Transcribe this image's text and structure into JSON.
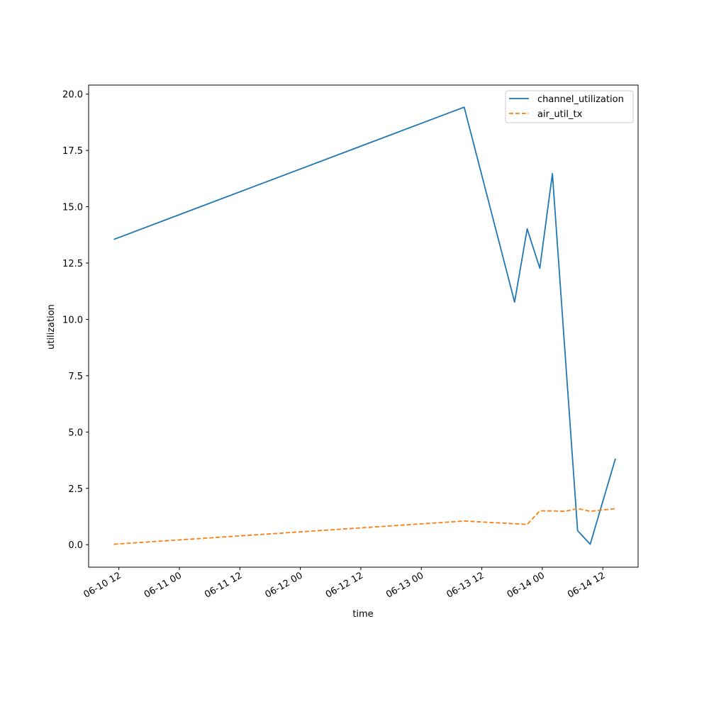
{
  "chart_data": {
    "type": "line",
    "xlabel": "time",
    "ylabel": "utilization",
    "x_tick_labels": [
      "06-10 12",
      "06-11 00",
      "06-11 12",
      "06-12 00",
      "06-12 12",
      "06-13 00",
      "06-13 12",
      "06-14 00",
      "06-14 12"
    ],
    "y_tick_labels": [
      "0.0",
      "2.5",
      "5.0",
      "7.5",
      "10.0",
      "12.5",
      "15.0",
      "17.5",
      "20.0"
    ],
    "y_ticks": [
      0,
      2.5,
      5.0,
      7.5,
      10.0,
      12.5,
      15.0,
      17.5,
      20.0
    ],
    "xlim": [
      "2023-06-10 06:00",
      "2023-06-14 19:00"
    ],
    "ylim": [
      -1.0,
      20.4
    ],
    "grid": false,
    "legend_position": "upper right",
    "series": [
      {
        "name": "channel_utilization",
        "color": "#1f77b4",
        "line_style": "solid",
        "x": [
          "2023-06-10 11:00",
          "2023-06-13 08:30",
          "2023-06-13 18:30",
          "2023-06-13 21:00",
          "2023-06-13 23:30",
          "2023-06-14 02:00",
          "2023-06-14 07:00",
          "2023-06-14 09:30",
          "2023-06-14 14:30"
        ],
        "values": [
          13.55,
          19.42,
          10.77,
          14.02,
          12.27,
          16.47,
          0.62,
          0.02,
          3.82
        ]
      },
      {
        "name": "air_util_tx",
        "color": "#ff7f0e",
        "line_style": "dashed",
        "x": [
          "2023-06-10 11:00",
          "2023-06-13 08:30",
          "2023-06-13 21:00",
          "2023-06-13 23:30",
          "2023-06-14 02:00",
          "2023-06-14 04:30",
          "2023-06-14 07:00",
          "2023-06-14 09:30",
          "2023-06-14 14:30"
        ],
        "values": [
          0.02,
          1.05,
          0.9,
          1.5,
          1.5,
          1.48,
          1.6,
          1.48,
          1.6
        ]
      }
    ]
  }
}
